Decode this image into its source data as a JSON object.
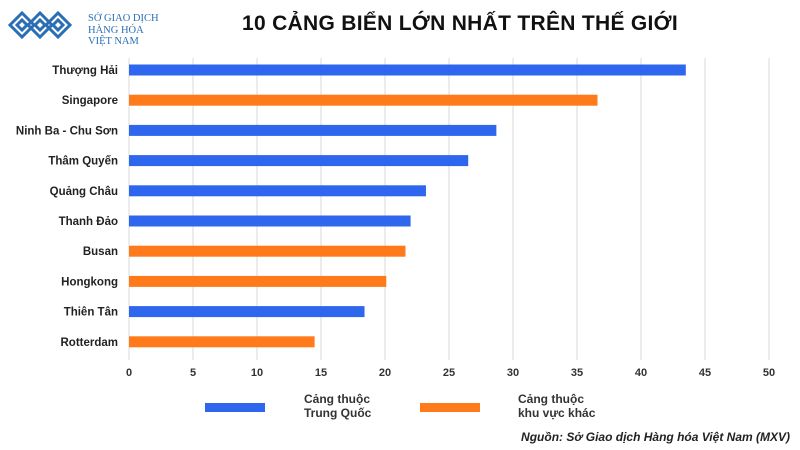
{
  "header": {
    "logo_lines": [
      "SỞ GIAO DỊCH",
      "HÀNG HÓA",
      "VIỆT NAM"
    ],
    "title": "10 CẢNG BIỂN LỚN NHẤT TRÊN THẾ GIỚI"
  },
  "colors": {
    "china": "#2f66ee",
    "other": "#ff7a1a",
    "grid": "#d9d9d9",
    "logo": "#2a6fb5"
  },
  "legend": {
    "china_line1": "Cảng thuộc",
    "china_line2": "Trung Quốc",
    "other_line1": "Cảng thuộc",
    "other_line2": "khu vực khác"
  },
  "source": "Nguồn: Sở Giao dịch Hàng hóa Việt Nam (MXV)",
  "chart_data": {
    "type": "bar",
    "orientation": "horizontal",
    "title": "10 CẢNG BIỂN LỚN NHẤT TRÊN THẾ GIỚI",
    "categories": [
      "Thượng Hải",
      "Singapore",
      "Ninh Ba - Chu Sơn",
      "Thâm Quyến",
      "Quảng Châu",
      "Thanh Đảo",
      "Busan",
      "Hongkong",
      "Thiên Tân",
      "Rotterdam"
    ],
    "values": [
      43.5,
      36.6,
      28.7,
      26.5,
      23.2,
      22.0,
      21.6,
      20.1,
      18.4,
      14.5
    ],
    "groups": [
      "china",
      "other",
      "china",
      "china",
      "china",
      "china",
      "other",
      "other",
      "china",
      "other"
    ],
    "xlim": [
      0,
      50
    ],
    "xticks": [
      0,
      5,
      10,
      15,
      20,
      25,
      30,
      35,
      40,
      45,
      50
    ],
    "grid": true,
    "legend_position": "bottom"
  }
}
